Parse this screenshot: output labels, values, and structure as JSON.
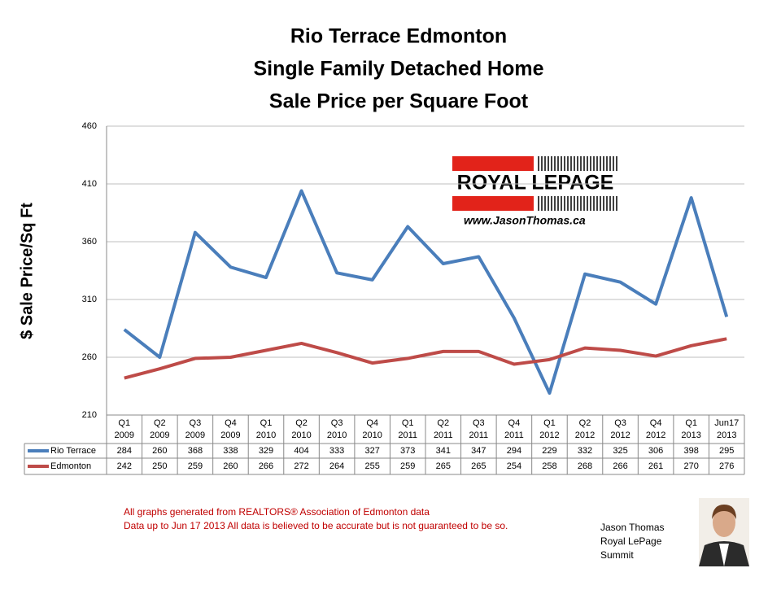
{
  "chart_data": {
    "type": "line",
    "title": [
      "Rio Terrace Edmonton",
      "Single Family Detached Home",
      "Sale Price per Square Foot"
    ],
    "y_label": "$ Sale Price/Sq Ft",
    "categories": [
      [
        "Q1",
        "2009"
      ],
      [
        "Q2",
        "2009"
      ],
      [
        "Q3",
        "2009"
      ],
      [
        "Q4",
        "2009"
      ],
      [
        "Q1",
        "2010"
      ],
      [
        "Q2",
        "2010"
      ],
      [
        "Q3",
        "2010"
      ],
      [
        "Q4",
        "2010"
      ],
      [
        "Q1",
        "2011"
      ],
      [
        "Q2",
        "2011"
      ],
      [
        "Q3",
        "2011"
      ],
      [
        "Q4",
        "2011"
      ],
      [
        "Q1",
        "2012"
      ],
      [
        "Q2",
        "2012"
      ],
      [
        "Q3",
        "2012"
      ],
      [
        "Q4",
        "2012"
      ],
      [
        "Q1",
        "2013"
      ],
      [
        "Jun17",
        "2013"
      ]
    ],
    "series": [
      {
        "name": "Rio Terrace",
        "color": "#4a7ebb",
        "values": [
          284,
          260,
          368,
          338,
          329,
          404,
          333,
          327,
          373,
          341,
          347,
          294,
          229,
          332,
          325,
          306,
          398,
          295
        ]
      },
      {
        "name": "Edmonton",
        "color": "#be4b48",
        "values": [
          242,
          250,
          259,
          260,
          266,
          272,
          264,
          255,
          259,
          265,
          265,
          254,
          258,
          268,
          266,
          261,
          270,
          276
        ]
      }
    ],
    "ylim": [
      210,
      460
    ],
    "yticks": [
      210,
      260,
      310,
      360,
      410,
      460
    ],
    "grid": true
  },
  "logo": {
    "brand": "ROYAL LEPAGE",
    "url": "www.JasonThomas.ca"
  },
  "footnote": [
    "All graphs generated from REALTORS® Association of Edmonton data",
    "Data up to  Jun 17 2013  All data is believed to be accurate but is not guaranteed to be so."
  ],
  "agent": [
    "Jason Thomas",
    "Royal LePage",
    "Summit"
  ]
}
